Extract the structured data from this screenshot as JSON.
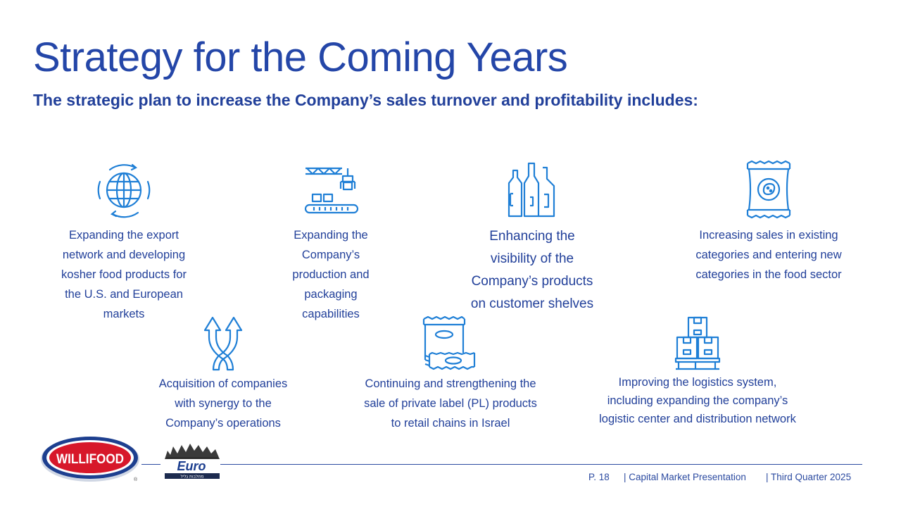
{
  "title": "Strategy for the Coming Years",
  "subtitle": "The strategic plan to increase the Company’s sales turnover and profitability includes:",
  "items": [
    {
      "icon": "globe-icon",
      "lines": [
        "Expanding the export",
        "network and developing",
        "kosher food products for",
        "the U.S. and European",
        "markets"
      ]
    },
    {
      "icon": "factory-conveyor-icon",
      "lines": [
        "Expanding the",
        "Company’s",
        "production and",
        "packaging",
        "capabilities"
      ]
    },
    {
      "icon": "bottles-icon",
      "lines": [
        "Enhancing the",
        "visibility of the",
        "Company’s products",
        "on customer shelves"
      ]
    },
    {
      "icon": "snack-bag-icon",
      "lines": [
        "Increasing sales in existing",
        "categories and entering new",
        "categories in the food sector"
      ]
    },
    {
      "icon": "merge-arrows-icon",
      "lines": [
        "Acquisition of companies",
        "with synergy to the",
        "Company’s operations"
      ]
    },
    {
      "icon": "private-label-packages-icon",
      "lines": [
        "Continuing and strengthening the",
        "sale of private label (PL) products",
        "to retail chains in Israel"
      ]
    },
    {
      "icon": "pallet-boxes-icon",
      "lines": [
        "Improving the logistics system,",
        "including expanding the company’s",
        "logistic center and distribution network"
      ]
    }
  ],
  "footer": {
    "page": "P. 18",
    "presentation": "| Capital Market Presentation",
    "quarter": "| Third Quarter 2025"
  },
  "logos": {
    "willifood": "WILLIFOOD",
    "euro": "Euro",
    "euro_hebrew": "מחלבות גליל",
    "registered": "®"
  },
  "colors": {
    "primary": "#22409a",
    "icon": "#1f7fd6",
    "logo_red": "#d7182a"
  }
}
